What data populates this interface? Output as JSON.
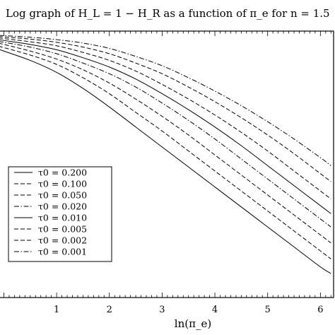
{
  "chart_data": {
    "type": "line",
    "title": "Log graph of H_L = 1 − H_R as a function of π_e for n = 1.5",
    "xlabel": "ln(π_e)",
    "ylabel": "",
    "xlim": [
      -0.1,
      6.25
    ],
    "ylim": [
      0,
      1
    ],
    "x_ticks": [
      1,
      2,
      3,
      4,
      5,
      6
    ],
    "grid": false,
    "legend_position": "lower-left",
    "x": [
      0,
      0.5,
      1,
      1.5,
      2,
      2.5,
      3,
      3.5,
      4,
      4.5,
      5,
      5.5,
      6,
      6.2
    ],
    "series": [
      {
        "name": "τ0 = 0.200",
        "style": "solid",
        "values": [
          0.925,
          0.89,
          0.845,
          0.785,
          0.715,
          0.64,
          0.565,
          0.49,
          0.415,
          0.34,
          0.265,
          0.19,
          0.115,
          0.09
        ]
      },
      {
        "name": "τ0 = 0.100",
        "style": "dashed",
        "values": [
          0.938,
          0.91,
          0.875,
          0.825,
          0.765,
          0.695,
          0.625,
          0.55,
          0.475,
          0.4,
          0.325,
          0.25,
          0.175,
          0.145
        ]
      },
      {
        "name": "τ0 = 0.050",
        "style": "dashed",
        "values": [
          0.95,
          0.925,
          0.895,
          0.855,
          0.805,
          0.745,
          0.68,
          0.61,
          0.535,
          0.46,
          0.385,
          0.31,
          0.235,
          0.205
        ]
      },
      {
        "name": "τ0 = 0.020",
        "style": "dashdot",
        "values": [
          0.958,
          0.94,
          0.915,
          0.88,
          0.84,
          0.79,
          0.73,
          0.665,
          0.595,
          0.52,
          0.445,
          0.37,
          0.295,
          0.265
        ]
      },
      {
        "name": "τ0 = 0.010",
        "style": "solid",
        "values": [
          0.965,
          0.95,
          0.93,
          0.9,
          0.865,
          0.82,
          0.765,
          0.705,
          0.64,
          0.57,
          0.495,
          0.42,
          0.345,
          0.315
        ]
      },
      {
        "name": "τ0 = 0.005",
        "style": "dashed",
        "values": [
          0.972,
          0.96,
          0.945,
          0.92,
          0.89,
          0.85,
          0.8,
          0.745,
          0.685,
          0.62,
          0.55,
          0.475,
          0.4,
          0.37
        ]
      },
      {
        "name": "τ0 = 0.002",
        "style": "dashed",
        "values": [
          0.978,
          0.97,
          0.958,
          0.94,
          0.915,
          0.88,
          0.84,
          0.79,
          0.735,
          0.675,
          0.61,
          0.54,
          0.465,
          0.435
        ]
      },
      {
        "name": "τ0 = 0.001",
        "style": "dashdot",
        "values": [
          0.983,
          0.977,
          0.968,
          0.955,
          0.935,
          0.905,
          0.87,
          0.825,
          0.775,
          0.72,
          0.66,
          0.595,
          0.525,
          0.495
        ]
      }
    ]
  }
}
